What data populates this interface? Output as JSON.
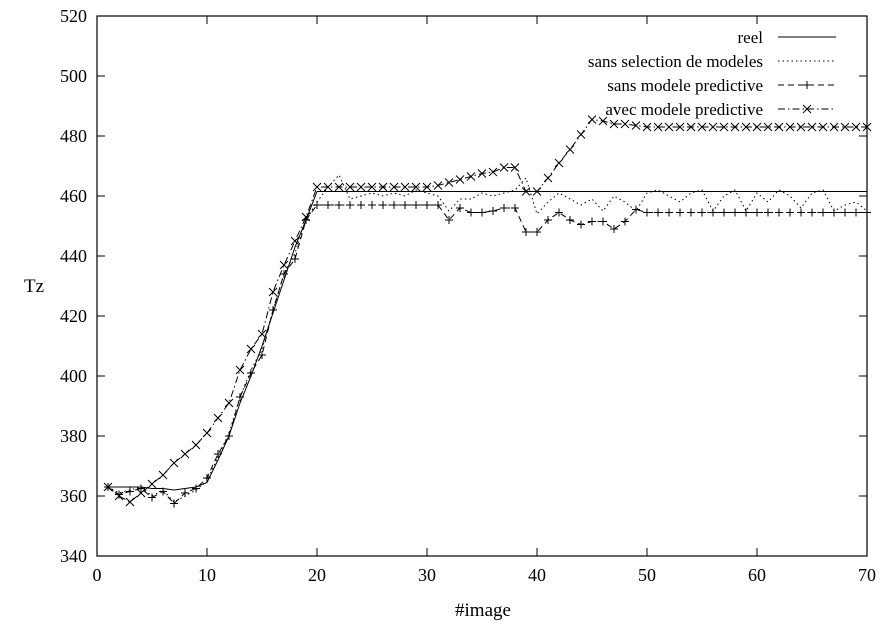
{
  "chart_data": {
    "type": "line",
    "xlabel": "#image",
    "ylabel": "Tz",
    "xlim": [
      0,
      70
    ],
    "ylim": [
      340,
      520
    ],
    "x_ticks": [
      0,
      10,
      20,
      30,
      40,
      50,
      60,
      70
    ],
    "y_ticks": [
      340,
      360,
      380,
      400,
      420,
      440,
      460,
      480,
      500,
      520
    ],
    "x_tick_labels": [
      "0",
      "10",
      "20",
      "30",
      "40",
      "50",
      "60",
      "70"
    ],
    "y_tick_labels": [
      "340",
      "360",
      "380",
      "400",
      "420",
      "440",
      "460",
      "480",
      "500",
      "520"
    ],
    "grid": false,
    "legend_position": "top-right",
    "series": [
      {
        "name": "reel",
        "style": "solid",
        "marker": "none",
        "x": [
          1,
          2,
          3,
          4,
          5,
          6,
          7,
          8,
          9,
          10,
          11,
          12,
          13,
          14,
          15,
          16,
          17,
          18,
          19,
          20,
          21,
          22,
          23,
          24,
          25,
          26,
          27,
          28,
          29,
          30,
          31,
          32,
          33,
          34,
          35,
          36,
          37,
          38,
          39,
          40,
          41,
          42,
          43,
          44,
          45,
          46,
          47,
          48,
          49,
          50,
          51,
          52,
          53,
          54,
          55,
          56,
          57,
          58,
          59,
          60,
          61,
          62,
          63,
          64,
          65,
          66,
          67,
          68,
          69,
          70
        ],
        "values": [
          363,
          363,
          363,
          363,
          362.5,
          362.5,
          362,
          362.5,
          363,
          364.5,
          372,
          380,
          391,
          400,
          410,
          421,
          432,
          443,
          452,
          461.5,
          461.5,
          461.5,
          461.5,
          461.5,
          461.5,
          461.5,
          461.5,
          461.5,
          461.5,
          461.5,
          461.5,
          461.5,
          461.5,
          461.5,
          461.5,
          461.5,
          461.5,
          461.5,
          461.5,
          461.5,
          461.5,
          461.5,
          461.5,
          461.5,
          461.5,
          461.5,
          461.5,
          461.5,
          461.5,
          461.5,
          461.5,
          461.5,
          461.5,
          461.5,
          461.5,
          461.5,
          461.5,
          461.5,
          461.5,
          461.5,
          461.5,
          461.5,
          461.5,
          461.5,
          461.5,
          461.5,
          461.5,
          461.5,
          461.5,
          461.5
        ]
      },
      {
        "name": "sans selection de modeles",
        "style": "dotted",
        "marker": "none",
        "x": [
          1,
          2,
          3,
          4,
          5,
          6,
          7,
          8,
          9,
          10,
          11,
          12,
          13,
          14,
          15,
          16,
          17,
          18,
          19,
          20,
          21,
          22,
          23,
          24,
          25,
          26,
          27,
          28,
          29,
          30,
          31,
          32,
          33,
          34,
          35,
          36,
          37,
          38,
          39,
          40,
          41,
          42,
          43,
          44,
          45,
          46,
          47,
          48,
          49,
          50,
          51,
          52,
          53,
          54,
          55,
          56,
          57,
          58,
          59,
          60,
          61,
          62,
          63,
          64,
          65,
          66,
          67,
          68,
          69,
          70
        ],
        "values": [
          363,
          361,
          362,
          363,
          360,
          362,
          358,
          360,
          362,
          365,
          373,
          381,
          393,
          402,
          409,
          422,
          434,
          441,
          452,
          458,
          463,
          467,
          459,
          460,
          461,
          460,
          461,
          460,
          462,
          461,
          460,
          455,
          459,
          459,
          461,
          460,
          461,
          462,
          466,
          454,
          458,
          461,
          459,
          457,
          459,
          455,
          460,
          458,
          455,
          461,
          462,
          460,
          458,
          461,
          462,
          455,
          460,
          462,
          455,
          461,
          458,
          462,
          460,
          456,
          461,
          462,
          455,
          457,
          458,
          455
        ]
      },
      {
        "name": "sans modele predictive",
        "style": "dashed",
        "marker": "plus",
        "x": [
          1,
          2,
          3,
          4,
          5,
          6,
          7,
          8,
          9,
          10,
          11,
          12,
          13,
          14,
          15,
          16,
          17,
          18,
          19,
          20,
          21,
          22,
          23,
          24,
          25,
          26,
          27,
          28,
          29,
          30,
          31,
          32,
          33,
          34,
          35,
          36,
          37,
          38,
          39,
          40,
          41,
          42,
          43,
          44,
          45,
          46,
          47,
          48,
          49,
          50,
          51,
          52,
          53,
          54,
          55,
          56,
          57,
          58,
          59,
          60,
          61,
          62,
          63,
          64,
          65,
          66,
          67,
          68,
          69,
          70
        ],
        "values": [
          363,
          360.5,
          361.5,
          362.5,
          359.5,
          361.5,
          357.5,
          361,
          362.5,
          366,
          374,
          380,
          393,
          401,
          407,
          422,
          434,
          439,
          452,
          457,
          457,
          457,
          457,
          457,
          457,
          457,
          457,
          457,
          457,
          457,
          457,
          452,
          456,
          454.5,
          454.5,
          455,
          456,
          456,
          448,
          448,
          452,
          454.5,
          452,
          450.5,
          451.5,
          451.5,
          449,
          451.5,
          455.5,
          454.5,
          454.5,
          454.5,
          454.5,
          454.5,
          454.5,
          454.5,
          454.5,
          454.5,
          454.5,
          454.5,
          454.5,
          454.5,
          454.5,
          454.5,
          454.5,
          454.5,
          454.5,
          454.5,
          454.5,
          454.5
        ]
      },
      {
        "name": "avec modele predictive",
        "style": "dash-dot",
        "marker": "cross",
        "x": [
          1,
          2,
          3,
          4,
          5,
          6,
          7,
          8,
          9,
          10,
          11,
          12,
          13,
          14,
          15,
          16,
          17,
          18,
          19,
          20,
          21,
          22,
          23,
          24,
          25,
          26,
          27,
          28,
          29,
          30,
          31,
          32,
          33,
          34,
          35,
          36,
          37,
          38,
          39,
          40,
          41,
          42,
          43,
          44,
          45,
          46,
          47,
          48,
          49,
          50,
          51,
          52,
          53,
          54,
          55,
          56,
          57,
          58,
          59,
          60,
          61,
          62,
          63,
          64,
          65,
          66,
          67,
          68,
          69,
          70
        ],
        "values": [
          363,
          360,
          358,
          361,
          364,
          367,
          371,
          374,
          377,
          381,
          386,
          391,
          402,
          409,
          414,
          428,
          437,
          445,
          453,
          463,
          463,
          463,
          463,
          463,
          463,
          463,
          463,
          463,
          463,
          463,
          463.5,
          464.5,
          465.5,
          466.5,
          467.5,
          468,
          469.5,
          469.5,
          461.5,
          461.5,
          466,
          471,
          475.5,
          480.5,
          485.5,
          485,
          484,
          484,
          483.5,
          483,
          483,
          483,
          483,
          483,
          483,
          483,
          483,
          483,
          483,
          483,
          483,
          483,
          483,
          483,
          483,
          483,
          483,
          483,
          483,
          483
        ]
      }
    ]
  },
  "colors": {
    "background": "#ffffff",
    "axis": "#000000",
    "series_line": "#000000"
  }
}
